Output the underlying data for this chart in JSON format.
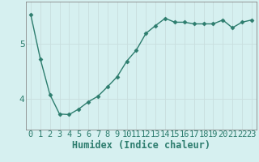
{
  "x": [
    0,
    1,
    2,
    3,
    4,
    5,
    6,
    7,
    8,
    9,
    10,
    11,
    12,
    13,
    14,
    15,
    16,
    17,
    18,
    19,
    20,
    21,
    22,
    23
  ],
  "y": [
    5.52,
    4.72,
    4.08,
    3.73,
    3.72,
    3.82,
    3.95,
    4.05,
    4.22,
    4.4,
    4.68,
    4.88,
    5.18,
    5.32,
    5.45,
    5.38,
    5.38,
    5.35,
    5.35,
    5.35,
    5.42,
    5.28,
    5.38,
    5.42
  ],
  "line_color": "#2d7d6e",
  "marker": "D",
  "marker_size": 2.5,
  "bg_color": "#d6f0f0",
  "grid_color": "#c8dede",
  "xlabel": "Humidex (Indice chaleur)",
  "yticks": [
    4,
    5
  ],
  "xlim": [
    -0.5,
    23.5
  ],
  "ylim": [
    3.45,
    5.75
  ],
  "axis_color": "#2d7d6e",
  "tick_color": "#2d7d6e",
  "font_size": 7.5,
  "xlabel_fontsize": 8.5,
  "ytick_fontsize": 8.0,
  "line_width": 1.0
}
